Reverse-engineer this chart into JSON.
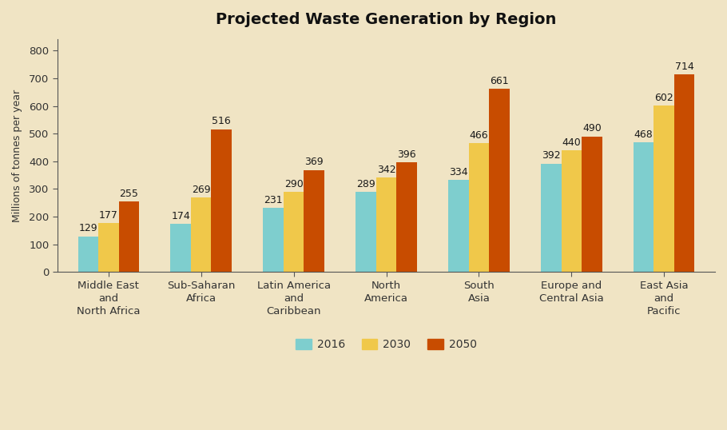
{
  "title": "Projected Waste Generation by Region",
  "ylabel": "Millions of tonnes per year",
  "background_color": "#f0e4c4",
  "categories": [
    "Middle East\nand\nNorth Africa",
    "Sub-Saharan\nAfrica",
    "Latin America\nand\nCaribbean",
    "North\nAmerica",
    "South\nAsia",
    "Europe and\nCentral Asia",
    "East Asia\nand\nPacific"
  ],
  "series": {
    "2016": [
      129,
      174,
      231,
      289,
      334,
      392,
      468
    ],
    "2030": [
      177,
      269,
      290,
      342,
      466,
      440,
      602
    ],
    "2050": [
      255,
      516,
      369,
      396,
      661,
      490,
      714
    ]
  },
  "colors": {
    "2016": "#7ecece",
    "2030": "#f0c84a",
    "2050": "#c84c00"
  },
  "ylim": [
    0,
    840
  ],
  "yticks": [
    0,
    100,
    200,
    300,
    400,
    500,
    600,
    700,
    800
  ],
  "legend_labels": [
    "2016",
    "2030",
    "2050"
  ],
  "bar_width": 0.22,
  "title_fontsize": 14,
  "label_fontsize": 9,
  "tick_fontsize": 9.5,
  "value_fontsize": 9,
  "legend_fontsize": 10
}
